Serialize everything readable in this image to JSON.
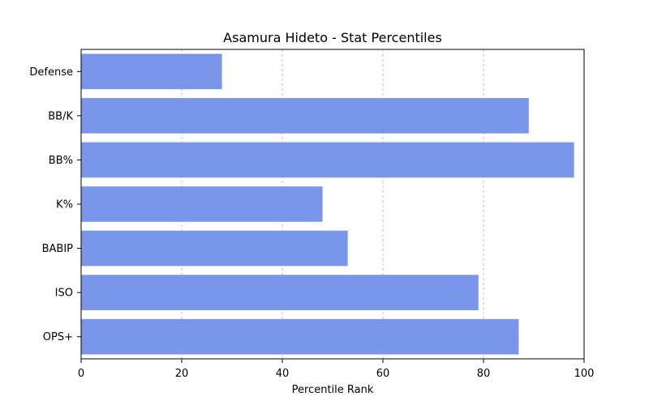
{
  "chart_data": {
    "type": "bar",
    "orientation": "horizontal",
    "title": "Asamura Hideto - Stat Percentiles",
    "xlabel": "Percentile Rank",
    "ylabel": "",
    "xlim": [
      0,
      100
    ],
    "xticks": [
      "0",
      "20",
      "40",
      "60",
      "80",
      "100"
    ],
    "categories": [
      "Defense",
      "BB/K",
      "BB%",
      "K%",
      "BABIP",
      "ISO",
      "OPS+"
    ],
    "values": [
      28,
      89,
      98,
      48,
      53,
      79,
      87
    ],
    "bar_color": "#7996ea",
    "grid": {
      "x": true,
      "y": false,
      "style": "dashed"
    }
  }
}
